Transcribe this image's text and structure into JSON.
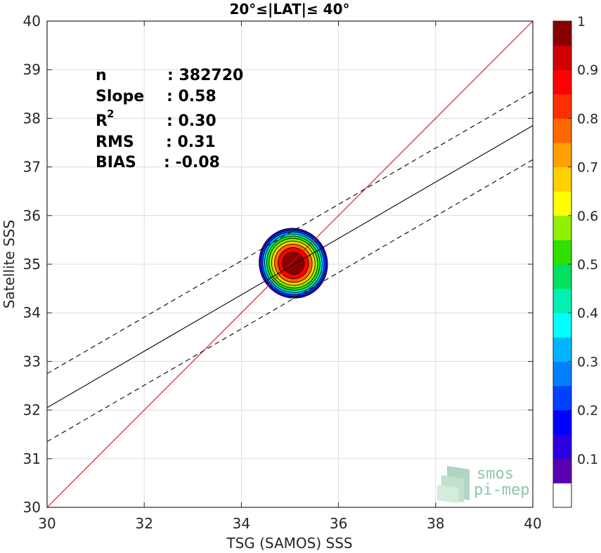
{
  "chart_data": {
    "type": "scatter",
    "title": "20°≤|LAT|≤ 40°",
    "xlabel": "TSG (SAMOS) SSS",
    "ylabel": "Satellite SSS",
    "xlim": [
      30,
      40
    ],
    "ylim": [
      30,
      40
    ],
    "xticks": [
      "30",
      "32",
      "34",
      "36",
      "38",
      "40"
    ],
    "yticks": [
      "30",
      "31",
      "32",
      "33",
      "34",
      "35",
      "36",
      "37",
      "38",
      "39",
      "40"
    ],
    "grid": true,
    "stats": {
      "n_label": "n",
      "n_value": ": 382720",
      "slope_label": "Slope",
      "slope_value": ": 0.58",
      "r2_label": "R",
      "r2_sup": "2",
      "r2_value": ": 0.30",
      "rms_label": "RMS",
      "rms_value": ": 0.31",
      "bias_label": "BIAS",
      "bias_value": ": -0.08"
    },
    "lines": {
      "identity": {
        "x": [
          30,
          40
        ],
        "y": [
          30,
          40
        ],
        "color": "#ff0000"
      },
      "fit": {
        "x": [
          30,
          40
        ],
        "y": [
          32.05,
          37.85
        ],
        "color": "#000000"
      },
      "fit_upper": {
        "x": [
          30,
          40
        ],
        "y": [
          32.75,
          38.55
        ],
        "color": "#000000",
        "dash": true
      },
      "fit_lower": {
        "x": [
          30,
          40
        ],
        "y": [
          31.35,
          37.15
        ],
        "color": "#000000",
        "dash": true
      }
    },
    "density": {
      "center": [
        35.07,
        35.02
      ],
      "levels": [
        0.05,
        0.15,
        0.25,
        0.35,
        0.45,
        0.55,
        0.65,
        0.75,
        0.85,
        0.95
      ],
      "outer_extent_x": [
        34.4,
        35.8
      ],
      "outer_extent_y": [
        34.3,
        35.75
      ]
    },
    "colorbar": {
      "min": 0,
      "max": 1,
      "ticks": [
        "0.1",
        "0.2",
        "0.3",
        "0.4",
        "0.5",
        "0.6",
        "0.7",
        "0.8",
        "0.9",
        "1"
      ],
      "colors": [
        "#ffffff",
        "#5a00b0",
        "#2a00e0",
        "#0000ff",
        "#0040ff",
        "#0080ff",
        "#00b4ff",
        "#00ffff",
        "#00f0b0",
        "#00e060",
        "#30e000",
        "#90f000",
        "#ffff00",
        "#ffd000",
        "#ffa000",
        "#ff6800",
        "#ff3000",
        "#ff0000",
        "#d00000",
        "#880000"
      ]
    }
  },
  "logo": {
    "line1": "smos",
    "line2": "pi-mep"
  }
}
